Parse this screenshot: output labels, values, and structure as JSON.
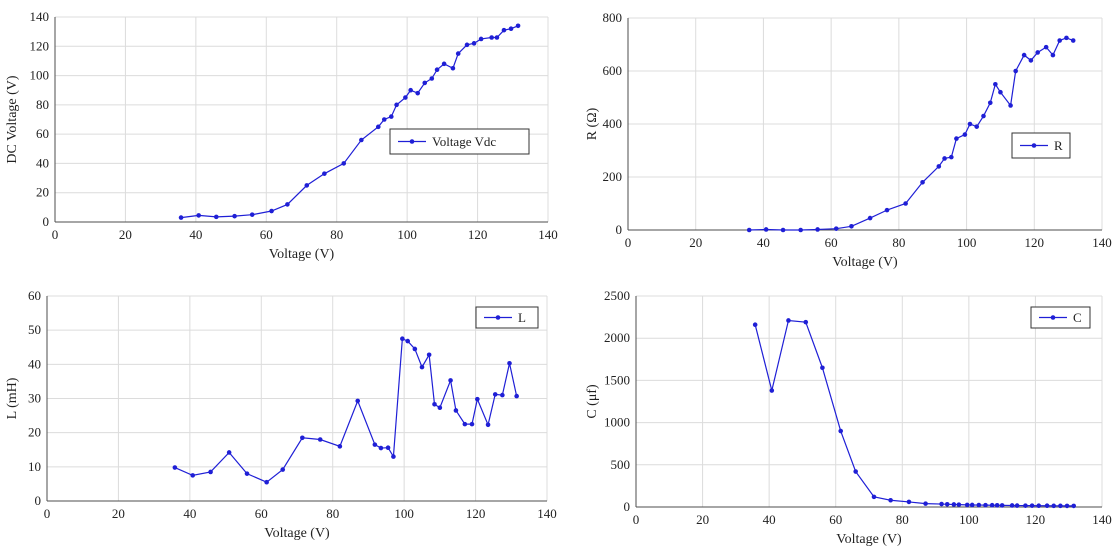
{
  "colors": {
    "series": "#1f1fd6",
    "grid": "#dcdcdc",
    "axis": "#4d4d4d"
  },
  "chart_data": [
    {
      "type": "line",
      "xlabel": "Voltage (V)",
      "ylabel": "DC Voltage (V)",
      "xlim": [
        0,
        140
      ],
      "ylim": [
        0,
        140
      ],
      "xticks": [
        0,
        20,
        40,
        60,
        80,
        100,
        120,
        140
      ],
      "yticks": [
        0,
        20,
        40,
        60,
        80,
        100,
        120,
        140
      ],
      "grid": true,
      "legend_position": "right",
      "series": [
        {
          "name": "Voltage Vdc",
          "x": [
            35.8,
            40.8,
            45.8,
            51.0,
            56.0,
            61.5,
            66.0,
            71.5,
            76.5,
            82.0,
            87.0,
            91.8,
            93.5,
            95.5,
            97.0,
            99.5,
            101.0,
            103.0,
            105.0,
            107.0,
            108.5,
            110.5,
            113.0,
            114.5,
            117.0,
            119.0,
            121.0,
            124.0,
            125.5,
            127.5,
            129.5,
            131.5
          ],
          "y": [
            3,
            4.5,
            3.5,
            4,
            5,
            7.5,
            12,
            25,
            33,
            40,
            56,
            65,
            70,
            72,
            80,
            85,
            90,
            88,
            95,
            98,
            104,
            108,
            105,
            115,
            121,
            122,
            125,
            126,
            126,
            131,
            132,
            134
          ]
        }
      ]
    },
    {
      "type": "line",
      "xlabel": "Voltage (V)",
      "ylabel": "R (Ω)",
      "xlim": [
        0,
        140
      ],
      "ylim": [
        0,
        800
      ],
      "xticks": [
        0,
        20,
        40,
        60,
        80,
        100,
        120,
        140
      ],
      "yticks": [
        0,
        200,
        400,
        600,
        800
      ],
      "grid": true,
      "legend_position": "right",
      "series": [
        {
          "name": "R",
          "x": [
            35.8,
            40.8,
            45.8,
            51.0,
            56.0,
            61.5,
            66.0,
            71.5,
            76.5,
            82.0,
            87.0,
            91.8,
            93.5,
            95.5,
            97.0,
            99.5,
            101.0,
            103.0,
            105.0,
            107.0,
            108.5,
            110.0,
            113.0,
            114.5,
            117.0,
            119.0,
            121.0,
            123.5,
            125.5,
            127.5,
            129.5,
            131.5
          ],
          "y": [
            0,
            2,
            0,
            0,
            2,
            5,
            14,
            45,
            75,
            100,
            180,
            240,
            270,
            275,
            345,
            360,
            400,
            390,
            430,
            480,
            550,
            520,
            470,
            600,
            660,
            640,
            670,
            690,
            660,
            715,
            725,
            715
          ]
        }
      ]
    },
    {
      "type": "line",
      "xlabel": "Voltage (V)",
      "ylabel": "L (mH)",
      "xlim": [
        0,
        140
      ],
      "ylim": [
        0,
        60
      ],
      "xticks": [
        0,
        20,
        40,
        60,
        80,
        100,
        120,
        140
      ],
      "yticks": [
        0,
        10,
        20,
        30,
        40,
        50,
        60
      ],
      "grid": true,
      "legend_position": "top-right",
      "series": [
        {
          "name": "L",
          "x": [
            35.8,
            40.8,
            45.8,
            51.0,
            56.0,
            61.5,
            66.0,
            71.5,
            76.5,
            82.0,
            87.0,
            91.8,
            93.5,
            95.5,
            97.0,
            99.5,
            101.0,
            103.0,
            105.0,
            107.0,
            108.5,
            110.0,
            113.0,
            114.5,
            117.0,
            119.0,
            120.5,
            123.5,
            125.5,
            127.5,
            129.5,
            131.5
          ],
          "y": [
            9.8,
            7.5,
            8.5,
            14.2,
            8,
            5.5,
            9.2,
            18.5,
            18,
            16,
            29.3,
            16.5,
            15.5,
            15.6,
            13,
            47.5,
            46.8,
            44.5,
            39.2,
            42.8,
            28.3,
            27.3,
            35.3,
            26.5,
            22.5,
            22.5,
            29.8,
            22.3,
            31.2,
            31,
            40.3,
            30.7
          ]
        }
      ]
    },
    {
      "type": "line",
      "xlabel": "Voltage (V)",
      "ylabel": "C (μf)",
      "xlim": [
        0,
        140
      ],
      "ylim": [
        0,
        2500
      ],
      "xticks": [
        0,
        20,
        40,
        60,
        80,
        100,
        120,
        140
      ],
      "yticks": [
        0,
        500,
        1000,
        1500,
        2000,
        2500
      ],
      "grid": true,
      "legend_position": "top-right",
      "series": [
        {
          "name": "C",
          "x": [
            35.8,
            40.8,
            45.8,
            51.0,
            56.0,
            61.5,
            66.0,
            71.5,
            76.5,
            82.0,
            87.0,
            91.8,
            93.5,
            95.5,
            97.0,
            99.5,
            101.0,
            103.0,
            105.0,
            107.0,
            108.5,
            110.0,
            113.0,
            114.5,
            117.0,
            119.0,
            121.0,
            123.5,
            125.5,
            127.5,
            129.5,
            131.5
          ],
          "y": [
            2160,
            1380,
            2210,
            2190,
            1650,
            900,
            420,
            120,
            80,
            60,
            40,
            35,
            32,
            30,
            28,
            25,
            24,
            23,
            22,
            21,
            20,
            19,
            18,
            17,
            16,
            16,
            15,
            15,
            14,
            14,
            13,
            13
          ]
        }
      ]
    }
  ]
}
